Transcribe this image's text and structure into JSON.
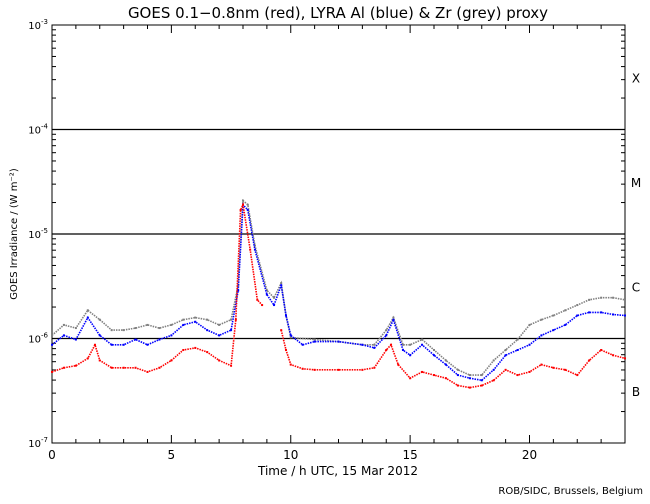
{
  "chart_data": {
    "type": "line",
    "title": "GOES 0.1−0.8nm (red), LYRA Al (blue) & Zr (grey) proxy",
    "xlabel": "Time / h UTC, 15 Mar 2012",
    "ylabel": "GOES Irradiance / (W m⁻²)",
    "xlim": [
      0,
      24
    ],
    "ylim": [
      1e-07,
      0.001
    ],
    "yscale": "log",
    "x_ticks": [
      "0",
      "5",
      "10",
      "15",
      "20"
    ],
    "x_tick_values": [
      0,
      5,
      10,
      15,
      20
    ],
    "y_ticks": [
      {
        "base": "10",
        "exp": "-7"
      },
      {
        "base": "10",
        "exp": "-6"
      },
      {
        "base": "10",
        "exp": "-5"
      },
      {
        "base": "10",
        "exp": "-4"
      },
      {
        "base": "10",
        "exp": "-3"
      }
    ],
    "y_tick_values": [
      -7,
      -6,
      -5,
      -4,
      -3
    ],
    "flare_classes": [
      {
        "label": "X",
        "log_center": -3.5
      },
      {
        "label": "M",
        "log_center": -4.5
      },
      {
        "label": "C",
        "log_center": -5.5
      },
      {
        "label": "B",
        "log_center": -6.5
      }
    ],
    "reference_lines_log": [
      -4,
      -5,
      -6
    ],
    "series": [
      {
        "name": "LYRA Zr proxy",
        "color": "#808080",
        "t": [
          0,
          0.5,
          1,
          1.5,
          2,
          2.5,
          3,
          3.5,
          4,
          4.5,
          5,
          5.5,
          6,
          6.5,
          7,
          7.5,
          7.8,
          8.0,
          8.2,
          8.5,
          9,
          9.3,
          9.6,
          9.8,
          10,
          11,
          12,
          13,
          13.5,
          14,
          14.3,
          14.7,
          15,
          15.5,
          16,
          16.5,
          17,
          17.5,
          18,
          18.5,
          19,
          19.5,
          20,
          20.5,
          21,
          21.5,
          22,
          22.5,
          23,
          23.5,
          24
        ],
        "log10_values": [
          -5.97,
          -5.87,
          -5.9,
          -5.73,
          -5.82,
          -5.92,
          -5.92,
          -5.9,
          -5.87,
          -5.9,
          -5.87,
          -5.82,
          -5.8,
          -5.82,
          -5.87,
          -5.82,
          -5.49,
          -4.68,
          -4.72,
          -5.11,
          -5.54,
          -5.61,
          -5.47,
          -5.78,
          -5.99,
          -6.01,
          -6.03,
          -6.06,
          -6.06,
          -5.92,
          -5.8,
          -6.06,
          -6.06,
          -6.01,
          -6.11,
          -6.21,
          -6.3,
          -6.35,
          -6.35,
          -6.21,
          -6.11,
          -6.01,
          -5.87,
          -5.82,
          -5.78,
          -5.73,
          -5.68,
          -5.63,
          -5.61,
          -5.61,
          -5.63
        ]
      },
      {
        "name": "LYRA Al proxy",
        "color": "#0000ff",
        "t": [
          0,
          0.5,
          1,
          1.5,
          2,
          2.5,
          3,
          3.5,
          4,
          4.5,
          5,
          5.5,
          6,
          6.5,
          7,
          7.5,
          7.8,
          8.0,
          8.2,
          8.5,
          9,
          9.3,
          9.6,
          9.8,
          10,
          10.5,
          11,
          12,
          13,
          13.5,
          14,
          14.3,
          14.7,
          15,
          15.5,
          16,
          16.5,
          17,
          17.5,
          18,
          18.5,
          19,
          19.5,
          20,
          20.5,
          21,
          21.5,
          22,
          22.5,
          23,
          23.5,
          24
        ],
        "log10_values": [
          -6.06,
          -5.97,
          -6.01,
          -5.8,
          -5.97,
          -6.06,
          -6.06,
          -6.01,
          -6.06,
          -6.01,
          -5.97,
          -5.87,
          -5.84,
          -5.92,
          -5.97,
          -5.92,
          -5.54,
          -4.72,
          -4.77,
          -5.15,
          -5.58,
          -5.68,
          -5.49,
          -5.78,
          -5.97,
          -6.06,
          -6.03,
          -6.03,
          -6.06,
          -6.09,
          -5.97,
          -5.82,
          -6.11,
          -6.16,
          -6.06,
          -6.16,
          -6.25,
          -6.35,
          -6.38,
          -6.4,
          -6.3,
          -6.16,
          -6.11,
          -6.06,
          -5.97,
          -5.92,
          -5.87,
          -5.78,
          -5.75,
          -5.75,
          -5.77,
          -5.78
        ]
      },
      {
        "name": "GOES 0.1-0.8nm",
        "color": "#ff0000",
        "t": [
          0,
          0.5,
          1,
          1.5,
          1.8,
          2,
          2.5,
          3,
          3.5,
          4,
          4.5,
          5,
          5.5,
          6,
          6.5,
          7,
          7.5,
          7.7,
          7.9,
          8.0,
          8.3,
          8.6,
          8.8,
          null,
          9.6,
          9.8,
          10,
          10.5,
          11,
          12,
          13,
          13.5,
          14,
          14.2,
          14.5,
          15,
          15.5,
          16,
          16.5,
          17,
          17.5,
          18,
          18.5,
          19,
          19.5,
          20,
          20.5,
          21,
          21.5,
          22,
          22.5,
          23,
          23.5,
          24
        ],
        "log10_values": [
          -6.32,
          -6.28,
          -6.26,
          -6.19,
          -6.06,
          -6.21,
          -6.28,
          -6.28,
          -6.28,
          -6.32,
          -6.28,
          -6.21,
          -6.11,
          -6.09,
          -6.13,
          -6.21,
          -6.26,
          -5.82,
          -4.77,
          -4.72,
          -5.15,
          -5.63,
          -5.68,
          null,
          -5.92,
          -6.11,
          -6.25,
          -6.29,
          -6.3,
          -6.3,
          -6.3,
          -6.28,
          -6.11,
          -6.06,
          -6.25,
          -6.38,
          -6.32,
          -6.35,
          -6.38,
          -6.45,
          -6.47,
          -6.45,
          -6.4,
          -6.3,
          -6.35,
          -6.32,
          -6.25,
          -6.28,
          -6.3,
          -6.35,
          -6.21,
          -6.11,
          -6.16,
          -6.19
        ]
      }
    ],
    "grid": false,
    "credit": "ROB/SIDC, Brussels, Belgium"
  }
}
